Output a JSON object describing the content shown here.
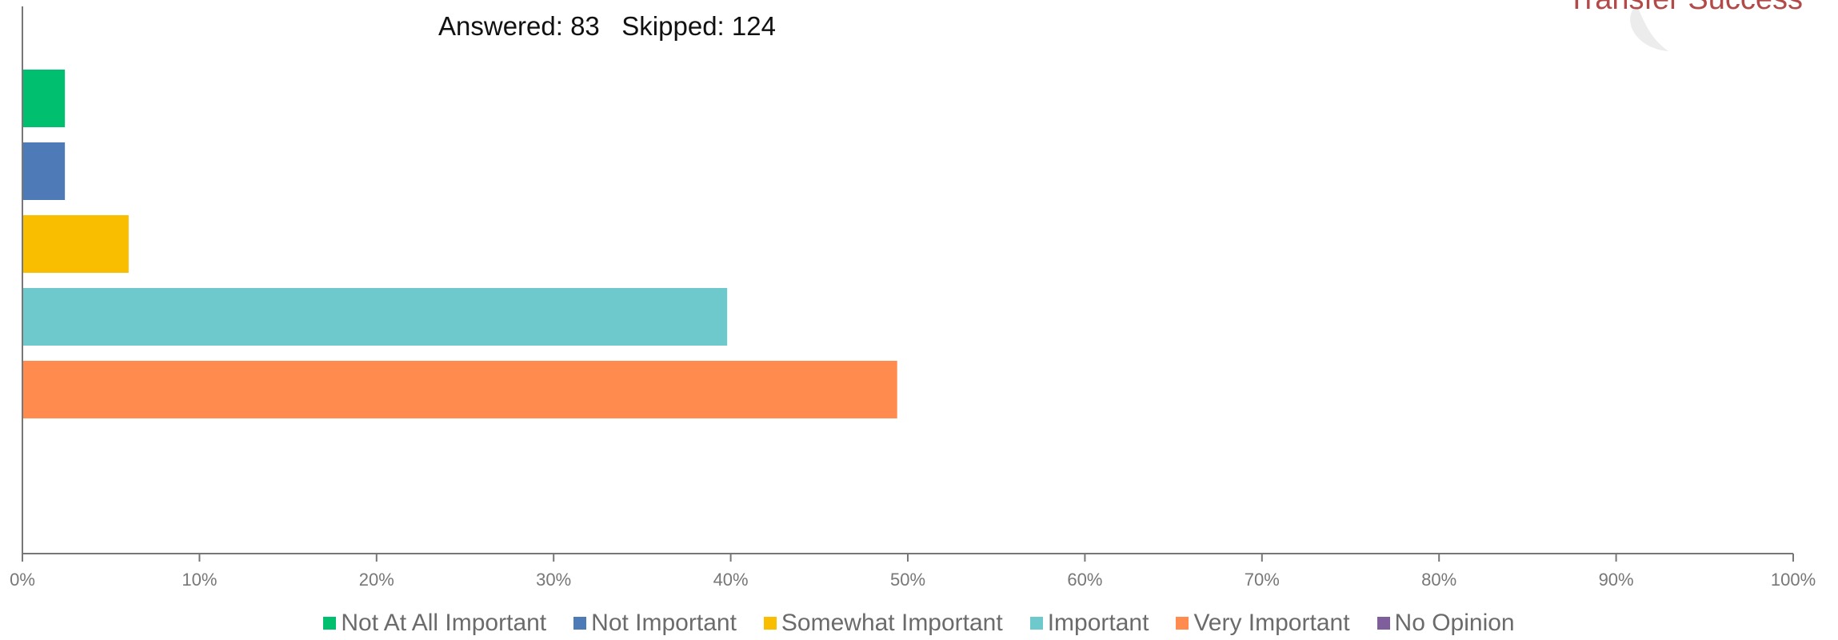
{
  "summary": "Answered: 83   Skipped: 124",
  "logo": {
    "text": "Transfer Success"
  },
  "chart_data": {
    "type": "bar",
    "orientation": "horizontal",
    "title": "",
    "xlabel": "",
    "ylabel": "",
    "xlim": [
      0,
      100
    ],
    "x_ticks": [
      "0%",
      "10%",
      "20%",
      "30%",
      "40%",
      "50%",
      "60%",
      "70%",
      "80%",
      "90%",
      "100%"
    ],
    "grid": false,
    "legend_position": "bottom",
    "series": [
      {
        "name": "Not At All Important",
        "value": 2.4,
        "color": "#00c06f"
      },
      {
        "name": "Not Important",
        "value": 2.4,
        "color": "#4f7ab8"
      },
      {
        "name": "Somewhat Important",
        "value": 6.0,
        "color": "#f9be00"
      },
      {
        "name": "Important",
        "value": 39.8,
        "color": "#6dc9cb"
      },
      {
        "name": "Very Important",
        "value": 49.4,
        "color": "#ff8b4f"
      },
      {
        "name": "No Opinion",
        "value": 0,
        "color": "#7e5f9b"
      }
    ]
  }
}
